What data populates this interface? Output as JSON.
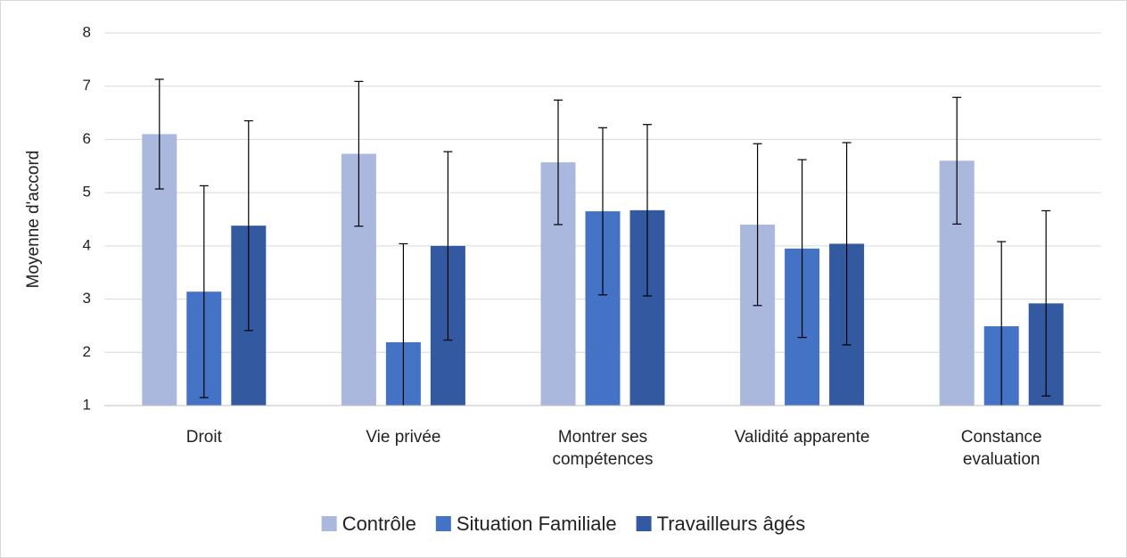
{
  "chart_data": {
    "type": "bar",
    "ylabel": "Moyenne d'accord",
    "categories": [
      "Droit",
      "Vie privée",
      "Montrer ses compétences",
      "Validité apparente",
      "Constance evaluation"
    ],
    "series": [
      {
        "name": "Contrôle",
        "color": "#a9b8dc",
        "values": [
          6.1,
          5.73,
          5.57,
          4.4,
          5.6
        ],
        "errors": [
          1.03,
          1.36,
          1.17,
          1.52,
          1.19
        ]
      },
      {
        "name": "Situation Familiale",
        "color": "#4472c4",
        "values": [
          3.14,
          2.19,
          4.65,
          3.95,
          2.49
        ],
        "errors": [
          1.99,
          1.85,
          1.57,
          1.67,
          1.59
        ]
      },
      {
        "name": "Travailleurs âgés",
        "color": "#335aa0",
        "values": [
          4.38,
          4.0,
          4.67,
          4.04,
          2.92
        ],
        "errors": [
          1.97,
          1.77,
          1.61,
          1.9,
          1.74
        ]
      }
    ],
    "ylim": [
      1,
      8
    ],
    "yticks": [
      1,
      2,
      3,
      4,
      5,
      6,
      7,
      8
    ],
    "grid": true,
    "legend": "bottom"
  }
}
